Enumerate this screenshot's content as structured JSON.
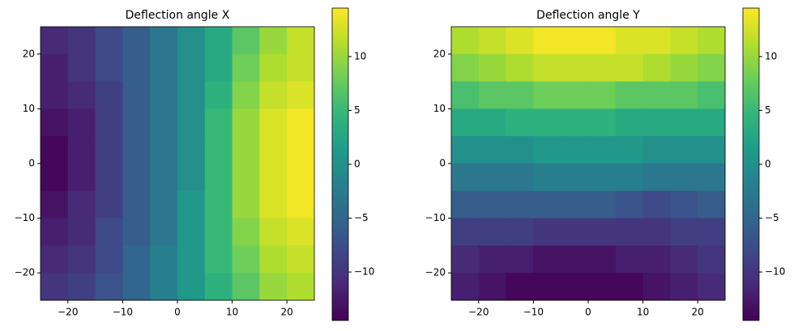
{
  "chart_data": [
    {
      "type": "heatmap",
      "title": "Deflection angle X",
      "colormap": "viridis",
      "x": [
        -22.5,
        -17.5,
        -12.5,
        -7.5,
        -2.5,
        2.5,
        7.5,
        12.5,
        17.5,
        22.5
      ],
      "y": [
        22.5,
        17.5,
        12.5,
        7.5,
        2.5,
        -2.5,
        -7.5,
        -12.5,
        -17.5,
        -22.5
      ],
      "values": [
        [
          -11,
          -10,
          -8,
          -6,
          -3,
          0,
          3,
          7,
          10,
          12
        ],
        [
          -12,
          -10,
          -8,
          -6,
          -3,
          0,
          3,
          8,
          11,
          12
        ],
        [
          -12,
          -11,
          -9,
          -6,
          -3,
          0,
          4,
          9,
          12,
          13
        ],
        [
          -13,
          -12,
          -9,
          -6,
          -3,
          0,
          5,
          10,
          13,
          14
        ],
        [
          -14,
          -12,
          -9,
          -6,
          -3,
          0,
          5,
          10,
          13,
          14
        ],
        [
          -14,
          -12,
          -9,
          -6,
          -3,
          0,
          5,
          10,
          13,
          14
        ],
        [
          -13,
          -11,
          -9,
          -6,
          -3,
          1,
          5,
          10,
          13,
          14
        ],
        [
          -12,
          -11,
          -8,
          -6,
          -3,
          1,
          5,
          9,
          12,
          13
        ],
        [
          -11,
          -10,
          -8,
          -5,
          -2,
          1,
          5,
          8,
          11,
          12
        ],
        [
          -10,
          -9,
          -7,
          -5,
          -2,
          1,
          4,
          7,
          10,
          11
        ]
      ],
      "xlim": [
        -25,
        25
      ],
      "ylim": [
        -25,
        25
      ],
      "xticks": [
        {
          "value": -20,
          "label": "−20"
        },
        {
          "value": -10,
          "label": "−10"
        },
        0,
        10,
        20
      ],
      "yticks": [
        {
          "value": -20,
          "label": "−20"
        },
        {
          "value": -10,
          "label": "−10"
        },
        0,
        10,
        20
      ],
      "clim": [
        -14.5,
        14.5
      ],
      "cticks": [
        {
          "value": -10,
          "label": "−10"
        },
        {
          "value": -5,
          "label": "−5"
        },
        0,
        5,
        10
      ]
    },
    {
      "type": "heatmap",
      "title": "Deflection angle Y",
      "colormap": "viridis",
      "x": [
        -22.5,
        -17.5,
        -12.5,
        -7.5,
        -2.5,
        2.5,
        7.5,
        12.5,
        17.5,
        22.5
      ],
      "y": [
        22.5,
        17.5,
        12.5,
        7.5,
        2.5,
        -2.5,
        -7.5,
        -12.5,
        -17.5,
        -22.5
      ],
      "values": [
        [
          11,
          12,
          13,
          14,
          14,
          14,
          13,
          13,
          12,
          11
        ],
        [
          9,
          10,
          11,
          12,
          12,
          12,
          12,
          11,
          10,
          9
        ],
        [
          6,
          7,
          7,
          8,
          8,
          8,
          7,
          7,
          7,
          6
        ],
        [
          3,
          3,
          4,
          4,
          4,
          4,
          3,
          3,
          3,
          3
        ],
        [
          0,
          0,
          0,
          1,
          1,
          1,
          1,
          0,
          0,
          0
        ],
        [
          -3,
          -3,
          -3,
          -2,
          -2,
          -2,
          -2,
          -3,
          -3,
          -3
        ],
        [
          -6,
          -6,
          -6,
          -6,
          -6,
          -6,
          -7,
          -8,
          -7,
          -6
        ],
        [
          -9,
          -9,
          -9,
          -10,
          -10,
          -10,
          -10,
          -10,
          -9,
          -9
        ],
        [
          -11,
          -12,
          -12,
          -13,
          -13,
          -13,
          -12,
          -12,
          -11,
          -10
        ],
        [
          -12,
          -13,
          -14,
          -14,
          -14,
          -14,
          -14,
          -13,
          -12,
          -11
        ]
      ],
      "xlim": [
        -25,
        25
      ],
      "ylim": [
        -25,
        25
      ],
      "xticks": [
        {
          "value": -20,
          "label": "−20"
        },
        {
          "value": -10,
          "label": "−10"
        },
        0,
        10,
        20
      ],
      "yticks": [
        {
          "value": -20,
          "label": "−20"
        },
        {
          "value": -10,
          "label": "−10"
        },
        0,
        10,
        20
      ],
      "clim": [
        -14.5,
        14.5
      ],
      "cticks": [
        {
          "value": -10,
          "label": "−10"
        },
        {
          "value": -5,
          "label": "−5"
        },
        0,
        5,
        10
      ]
    }
  ]
}
